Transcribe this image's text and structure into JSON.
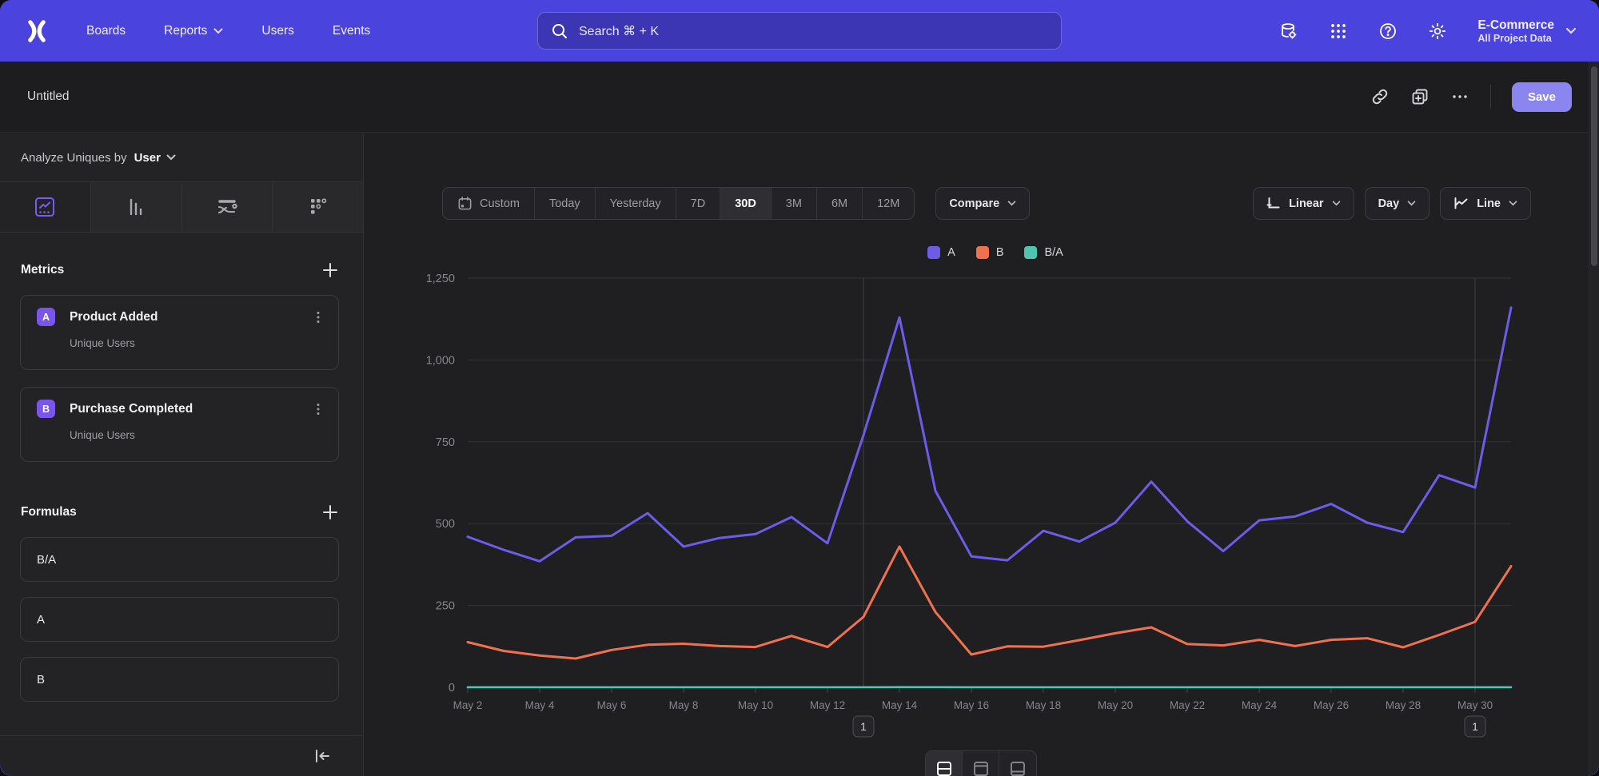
{
  "nav": {
    "items": [
      "Boards",
      "Reports",
      "Users",
      "Events"
    ],
    "search_placeholder": "Search  ⌘ + K",
    "project_name": "E-Commerce",
    "project_scope": "All Project Data"
  },
  "titlebar": {
    "title": "Untitled",
    "save_label": "Save"
  },
  "sidebar": {
    "analyze_label": "Analyze Uniques by",
    "analyze_value": "User",
    "metrics_title": "Metrics",
    "metrics": [
      {
        "letter": "A",
        "name": "Product Added",
        "subtitle": "Unique Users"
      },
      {
        "letter": "B",
        "name": "Purchase Completed",
        "subtitle": "Unique Users"
      }
    ],
    "formulas_title": "Formulas",
    "formulas": [
      "B/A",
      "A",
      "B"
    ]
  },
  "toolbar": {
    "ranges": [
      "Custom",
      "Today",
      "Yesterday",
      "7D",
      "30D",
      "3M",
      "6M",
      "12M"
    ],
    "selected_range": "30D",
    "compare_label": "Compare",
    "scale_label": "Linear",
    "interval_label": "Day",
    "chart_type_label": "Line"
  },
  "colors": {
    "nav_background": "#4a43dd",
    "accent_purple": "#6c5ce8",
    "series_orange": "#f0714e",
    "series_teal": "#4fc4b0",
    "save_button": "#8b85ef"
  },
  "chart_data": {
    "type": "line",
    "x": [
      "May 2",
      "May 3",
      "May 4",
      "May 5",
      "May 6",
      "May 7",
      "May 8",
      "May 9",
      "May 10",
      "May 11",
      "May 12",
      "May 13",
      "May 14",
      "May 15",
      "May 16",
      "May 17",
      "May 18",
      "May 19",
      "May 20",
      "May 21",
      "May 22",
      "May 23",
      "May 24",
      "May 25",
      "May 26",
      "May 27",
      "May 28",
      "May 29",
      "May 30",
      "May 31"
    ],
    "series": [
      {
        "name": "A",
        "color": "#6c5ce8",
        "values": [
          460,
          420,
          385,
          458,
          463,
          532,
          430,
          456,
          468,
          520,
          440,
          770,
          1130,
          600,
          400,
          388,
          478,
          445,
          503,
          628,
          507,
          416,
          510,
          522,
          560,
          503,
          474,
          648,
          610,
          1160
        ]
      },
      {
        "name": "B",
        "color": "#f0714e",
        "values": [
          138,
          111,
          97,
          88,
          114,
          130,
          133,
          126,
          123,
          157,
          123,
          215,
          430,
          230,
          100,
          125,
          124,
          144,
          165,
          183,
          132,
          128,
          145,
          126,
          145,
          150,
          122,
          160,
          200,
          370
        ]
      },
      {
        "name": "B/A",
        "color": "#4fc4b0",
        "values": [
          0.3,
          0.26,
          0.25,
          0.19,
          0.25,
          0.24,
          0.31,
          0.28,
          0.26,
          0.3,
          0.28,
          0.28,
          0.38,
          0.38,
          0.25,
          0.32,
          0.26,
          0.32,
          0.33,
          0.29,
          0.26,
          0.31,
          0.28,
          0.24,
          0.26,
          0.3,
          0.26,
          0.25,
          0.33,
          0.32
        ]
      }
    ],
    "ylim": [
      0,
      1250
    ],
    "yticks": [
      0,
      250,
      500,
      750,
      1000,
      1250
    ],
    "xtick_every": 2,
    "grid": true,
    "legend_position": "top",
    "annotations": [
      {
        "x": "May 13",
        "label": "1"
      },
      {
        "x": "May 30",
        "label": "1"
      }
    ]
  }
}
